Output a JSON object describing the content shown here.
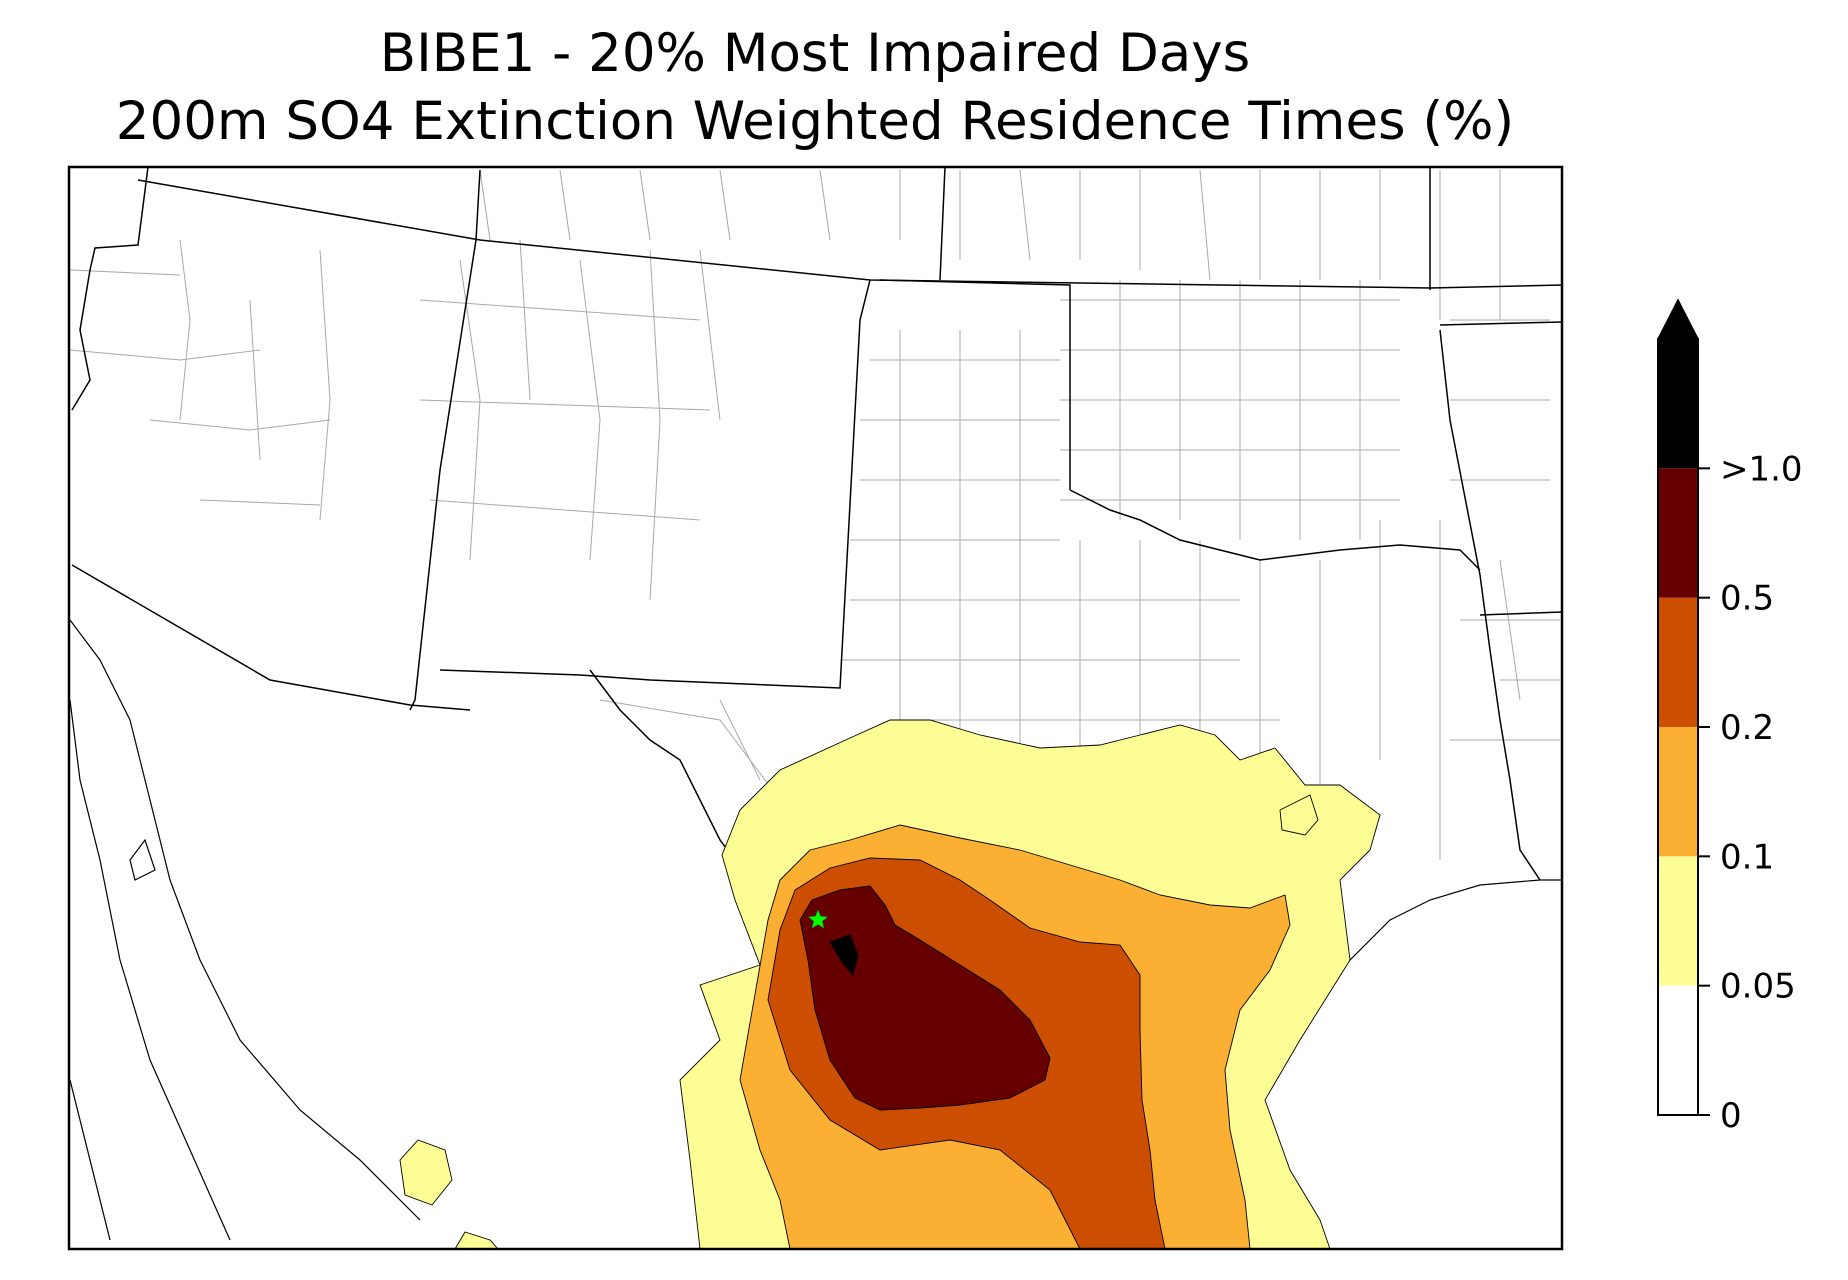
{
  "title": {
    "line1": "BIBE1 - 20% Most Impaired Days",
    "line2": "200m SO4 Extinction Weighted Residence Times (%)"
  },
  "map": {
    "site_marker": {
      "name": "BIBE1",
      "symbol": "star",
      "color": "#00ff00"
    },
    "boundary_colors": {
      "state": "#000000",
      "county": "#a8a8a8",
      "contour": "#000000"
    }
  },
  "colorbar": {
    "levels": [
      {
        "tick": "0",
        "color": "#ffffff"
      },
      {
        "tick": "0.05",
        "color": "#fdfd96"
      },
      {
        "tick": "0.1",
        "color": "#fbb034"
      },
      {
        "tick": "0.2",
        "color": "#cc4e00"
      },
      {
        "tick": "0.5",
        "color": "#660000"
      },
      {
        "tick": ">1.0",
        "color": "#000000"
      }
    ],
    "extend": "max"
  }
}
